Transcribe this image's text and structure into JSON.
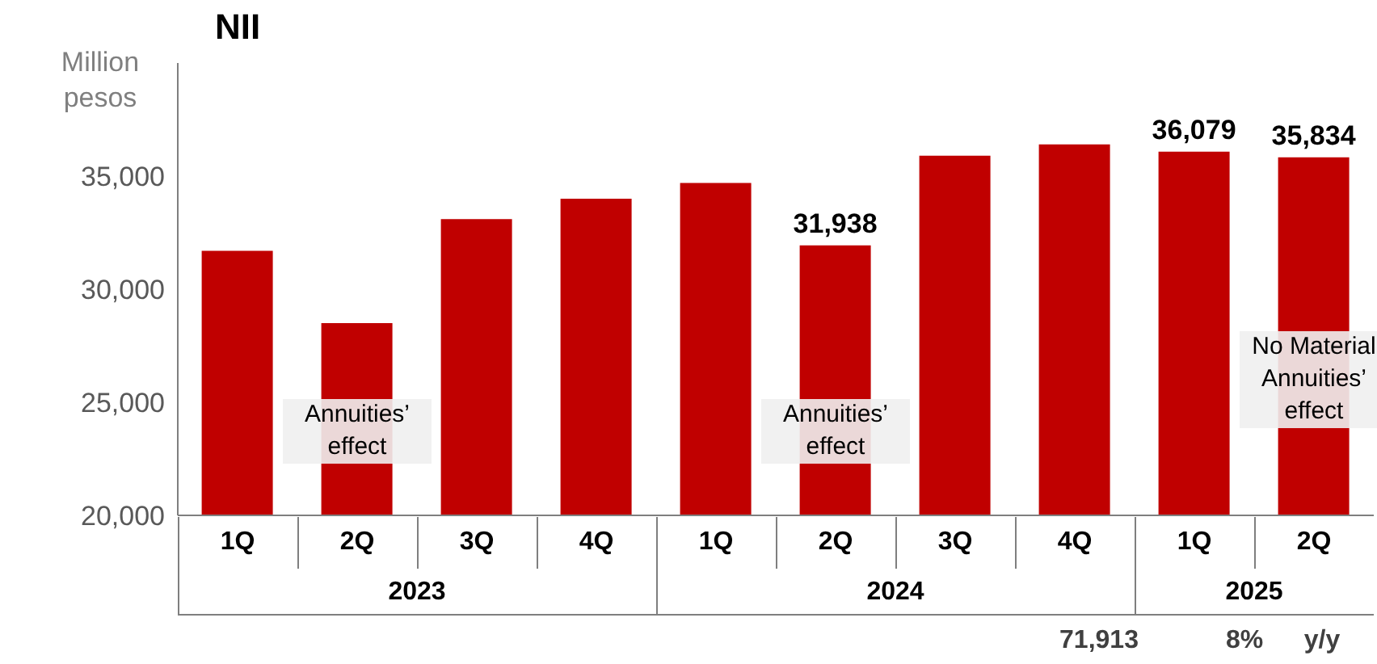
{
  "chart_data": {
    "type": "bar",
    "title": "NII",
    "ylabel": "Million pesos",
    "categories": [
      "1Q",
      "2Q",
      "3Q",
      "4Q",
      "1Q",
      "2Q",
      "3Q",
      "4Q",
      "1Q",
      "2Q"
    ],
    "values": [
      31700,
      28500,
      33100,
      34000,
      34700,
      31938,
      35900,
      36400,
      36079,
      35834
    ],
    "value_labels": [
      null,
      null,
      null,
      null,
      null,
      "31,938",
      null,
      null,
      "36,079",
      "35,834"
    ],
    "color": "#c00000",
    "ylim": [
      20000,
      40000
    ],
    "yticks": [
      {
        "value": 20000,
        "label": "20,000"
      },
      {
        "value": 25000,
        "label": "25,000"
      },
      {
        "value": 30000,
        "label": "30,000"
      },
      {
        "value": 35000,
        "label": "35,000"
      }
    ],
    "annotations": [
      "Annuities’ effect",
      "Annuities’ effect",
      "No Material Annuities’ effect",
      "2023",
      "2024",
      "2025",
      "71,913",
      "8%",
      "y/y"
    ]
  }
}
